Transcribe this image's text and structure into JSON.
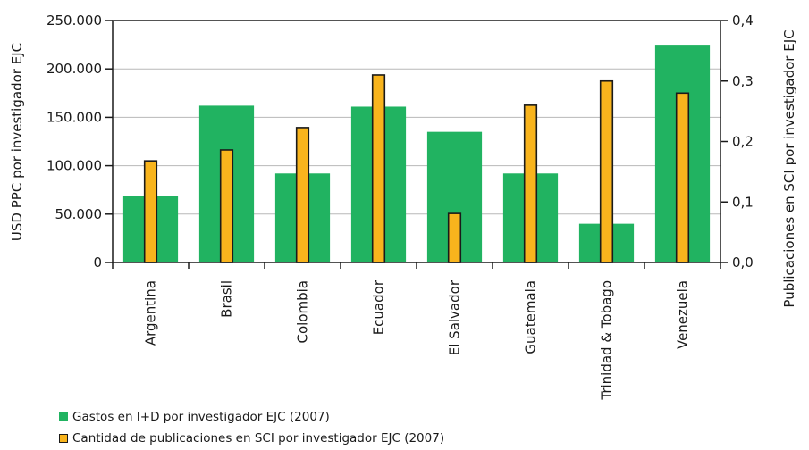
{
  "chart_data": {
    "type": "bar",
    "categories": [
      "Argentina",
      "Brasil",
      "Colombia",
      "Ecuador",
      "El Salvador",
      "Guatemala",
      "Trinidad & Tobago",
      "Venezuela"
    ],
    "series": [
      {
        "name": "Gastos en I+D por investigador EJC (2007)",
        "axis": "left",
        "color": "#21b361",
        "values": [
          69000,
          162000,
          92000,
          161000,
          135000,
          92000,
          40000,
          225000
        ]
      },
      {
        "name": "Cantidad de publicaciones en SCI por investigador EJC (2007)",
        "axis": "right",
        "color": "#f8b41d",
        "edge_color": "#1a1a1a",
        "values": [
          0.168,
          0.186,
          0.223,
          0.31,
          0.081,
          0.26,
          0.3,
          0.28
        ]
      }
    ],
    "ylabel": "USD PPC por investigador EJC",
    "y2label": "Publicaciones en SCI por investigador EJC",
    "ylim": [
      0,
      250000
    ],
    "y2lim": [
      0,
      0.4
    ],
    "yticks": [
      "0",
      "50.000",
      "100.000",
      "150.000",
      "200.000",
      "250.000"
    ],
    "y2ticks": [
      "0,0",
      "0,1",
      "0,2",
      "0,3",
      "0,4"
    ],
    "grid": true,
    "legend_position": "bottom-left"
  }
}
